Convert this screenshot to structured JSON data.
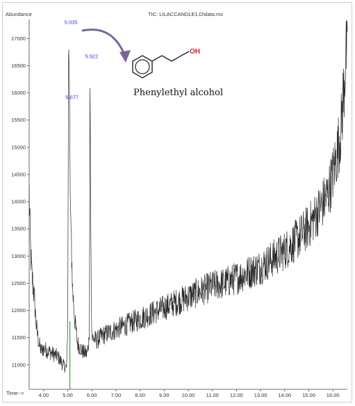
{
  "chart_data": {
    "type": "line",
    "title": "TIC: LILACCANDLE1.D\\data.ms",
    "ylabel": "Abundance",
    "xlabel": "Time-->",
    "xlim": [
      3.4,
      16.6
    ],
    "ylim": [
      10550,
      17350
    ],
    "x_ticks": [
      "4.00",
      "5.00",
      "6.00",
      "7.00",
      "8.00",
      "9.00",
      "10.00",
      "11.00",
      "12.00",
      "13.00",
      "14.00",
      "15.00",
      "16.00"
    ],
    "y_ticks": [
      "11000",
      "11500",
      "12000",
      "12500",
      "13000",
      "13500",
      "14000",
      "14500",
      "15000",
      "15500",
      "16000",
      "16500",
      "17000"
    ],
    "grid": false,
    "series": [
      {
        "color": "#2b2b2b",
        "x": [
          3.4,
          3.45,
          3.5,
          3.6,
          3.7,
          3.8,
          3.9,
          4.0,
          4.2,
          4.4,
          4.6,
          4.8,
          4.95,
          5.0,
          5.035,
          5.05,
          5.077,
          5.1,
          5.2,
          5.3,
          5.4,
          5.6,
          5.8,
          5.9,
          5.922,
          5.95,
          6.0,
          6.2,
          6.5,
          7.0,
          7.5,
          8.0,
          8.5,
          9.0,
          9.5,
          10.0,
          10.5,
          11.0,
          11.5,
          12.0,
          12.5,
          13.0,
          13.5,
          14.0,
          14.5,
          15.0,
          15.5,
          15.8,
          16.0,
          16.2,
          16.35,
          16.5,
          16.55,
          16.6
        ],
        "y": [
          14150,
          13200,
          12700,
          12300,
          11700,
          11400,
          11250,
          11300,
          11250,
          11200,
          11150,
          11000,
          10950,
          11600,
          17100,
          16600,
          15900,
          14200,
          12400,
          11800,
          11400,
          11250,
          11200,
          11500,
          16550,
          13800,
          11500,
          11450,
          11550,
          11650,
          11750,
          11850,
          11950,
          12050,
          12150,
          12250,
          12350,
          12450,
          12500,
          12600,
          12700,
          12800,
          12950,
          13100,
          13300,
          13550,
          13900,
          14150,
          14500,
          14950,
          15400,
          16400,
          16900,
          16500
        ]
      }
    ],
    "annotations": {
      "peak_labels": [
        {
          "text": "5.035",
          "x": 5.035,
          "y": 17100
        },
        {
          "text": "5.077",
          "x": 5.077,
          "y": 15900
        },
        {
          "text": "5.922",
          "x": 5.922,
          "y": 16550
        }
      ],
      "compound": "Phenylethyl alcohol",
      "oh_label": "OH"
    },
    "colors": {
      "arrow": "#7b6496",
      "peak_label": "#2a35d6",
      "oh": "#e0201b",
      "green_marker": "#1f8a1f"
    }
  }
}
